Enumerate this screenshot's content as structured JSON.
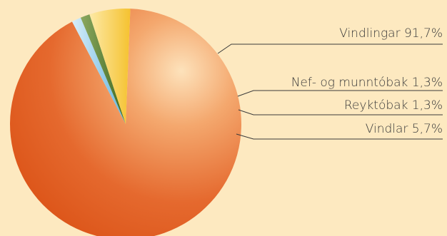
{
  "chart_data": {
    "type": "pie",
    "slices": [
      {
        "label": "Vindlingar 91,7%",
        "category": "Vindlingar",
        "value": 91.7,
        "color": "#e2602a"
      },
      {
        "label": "Nef- og munntóbak 1,3%",
        "category": "Nef- og munntóbak",
        "value": 1.3,
        "color": "#7cc0e4"
      },
      {
        "label": "Reyktóbak 1,3%",
        "category": "Reyktóbak",
        "value": 1.3,
        "color": "#4c7a2c"
      },
      {
        "label": "Vindlar 5,7%",
        "category": "Vindlar",
        "value": 5.7,
        "color": "#f7c846"
      }
    ],
    "title": "",
    "legend": "none (callout labels on right)"
  }
}
